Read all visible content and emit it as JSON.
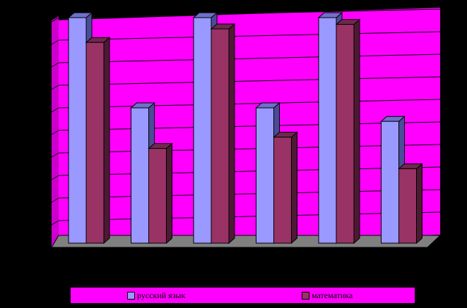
{
  "chart_data": {
    "type": "bar",
    "categories": [
      "",
      "",
      "",
      "",
      "",
      ""
    ],
    "series": [
      {
        "name": "русский язык",
        "values": [
          100,
          60,
          100,
          60,
          100,
          54
        ],
        "color": "#9999ff"
      },
      {
        "name": "математика",
        "values": [
          89,
          42,
          95,
          47,
          97,
          33
        ],
        "color": "#993366"
      }
    ],
    "ylim": [
      0,
      100
    ],
    "grid": true,
    "legend": "bottom",
    "colors": {
      "plot_background": "#ff00ff",
      "floor": "#808080",
      "page_background": "#000000"
    }
  }
}
